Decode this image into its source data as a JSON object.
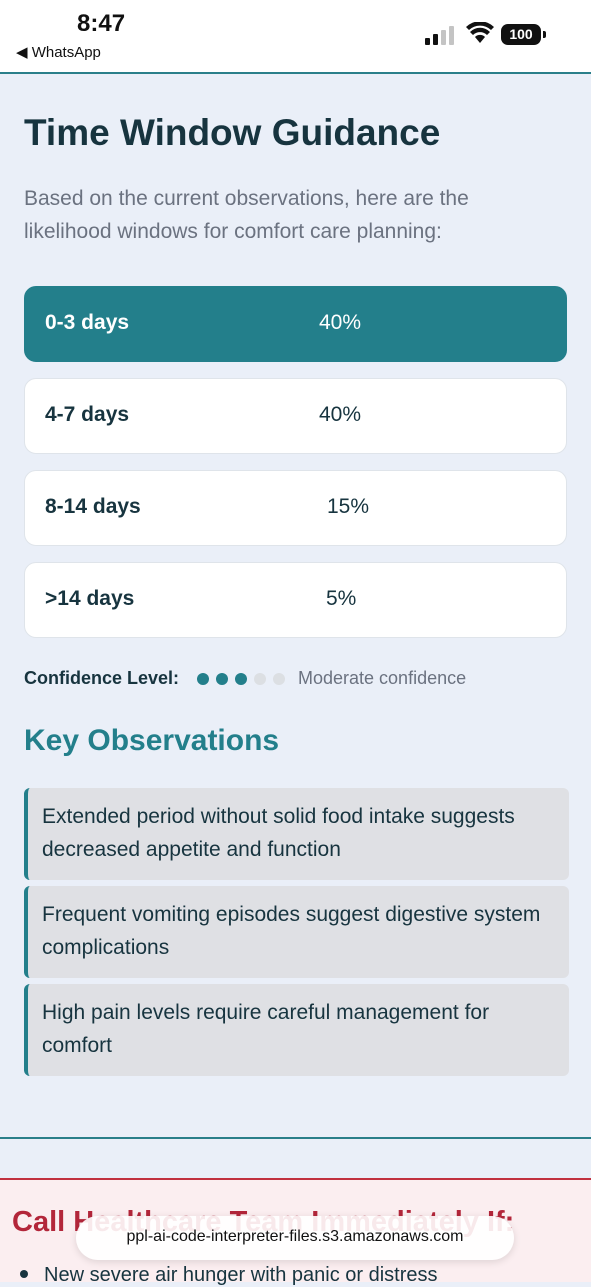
{
  "status_bar": {
    "time": "8:47",
    "back_app": "◀ WhatsApp",
    "battery": "100"
  },
  "page": {
    "title": "Time Window Guidance",
    "intro": "Based on the current observations, here are the likelihood windows for comfort care planning:"
  },
  "time_windows": [
    {
      "label": "0-3 days",
      "value": "40%",
      "active": true
    },
    {
      "label": "4-7 days",
      "value": "40%",
      "active": false
    },
    {
      "label": "8-14 days",
      "value": "15%",
      "active": false
    },
    {
      "label": ">14 days",
      "value": "5%",
      "active": false
    }
  ],
  "confidence": {
    "label": "Confidence Level:",
    "filled_dots": 3,
    "total_dots": 5,
    "text": "Moderate confidence"
  },
  "observations": {
    "title": "Key Observations",
    "items": [
      "Extended period without solid food intake suggests decreased appetite and function",
      "Frequent vomiting episodes suggest digestive system complications",
      "High pain levels require careful management for comfort"
    ]
  },
  "alert": {
    "title": "Call Healthcare Team Immediately If:",
    "first_item": "New severe air hunger with panic or distress"
  },
  "url_bar": {
    "text": "ppl-ai-code-interpreter-files.s3.amazonaws.com"
  },
  "colors": {
    "accent": "#237f8b",
    "alert": "#b3263a",
    "background": "#eaeff8"
  }
}
